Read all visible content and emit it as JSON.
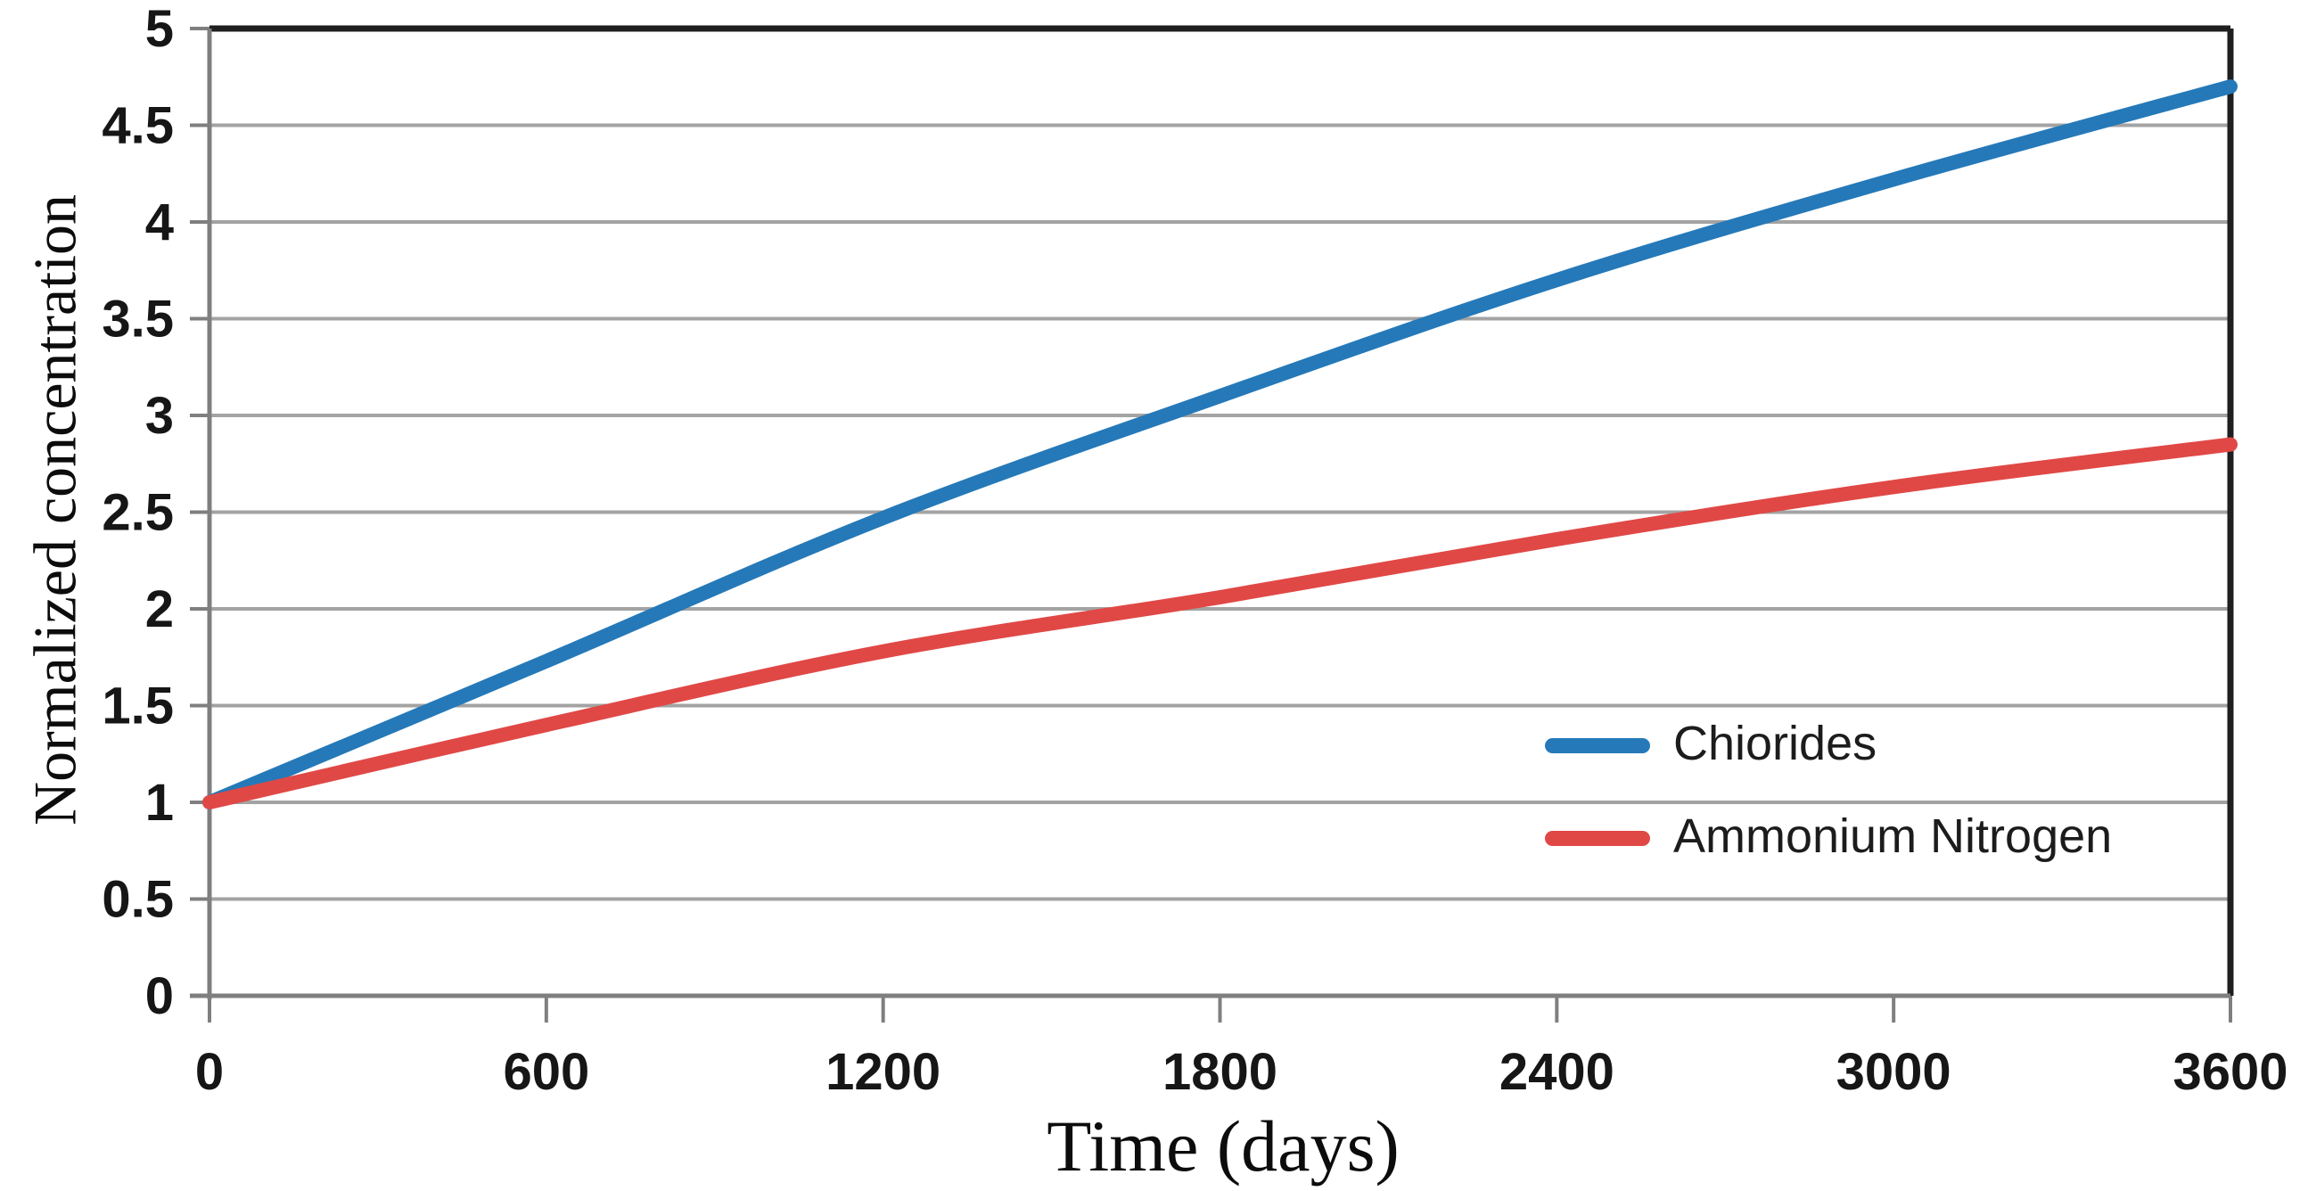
{
  "chart_data": {
    "type": "line",
    "title": "",
    "xlabel": "Time (days)",
    "ylabel": "Normalized concentration",
    "xlim": [
      0,
      3600
    ],
    "ylim": [
      0,
      5
    ],
    "xticks": [
      0,
      600,
      1200,
      1800,
      2400,
      3000,
      3600
    ],
    "yticks": [
      0,
      0.5,
      1,
      1.5,
      2,
      2.5,
      3,
      3.5,
      4,
      4.5,
      5
    ],
    "grid": "horizontal-only",
    "legend_position": "inside-right",
    "x": [
      0,
      600,
      1200,
      1800,
      2400,
      3000,
      3600
    ],
    "series": [
      {
        "name": "Chiorides",
        "color": "#2579b8",
        "values": [
          1.0,
          1.73,
          2.47,
          3.1,
          3.7,
          4.22,
          4.7
        ]
      },
      {
        "name": "Ammonium Nitrogen",
        "color": "#e04846",
        "values": [
          1.0,
          1.4,
          1.78,
          2.06,
          2.36,
          2.63,
          2.85
        ]
      }
    ],
    "colors": {
      "gridline": "#a3a3a3",
      "axis": "#7f7f7f",
      "plot_border_top_right": "#1f1f1f",
      "tick_text": "#161616"
    }
  }
}
